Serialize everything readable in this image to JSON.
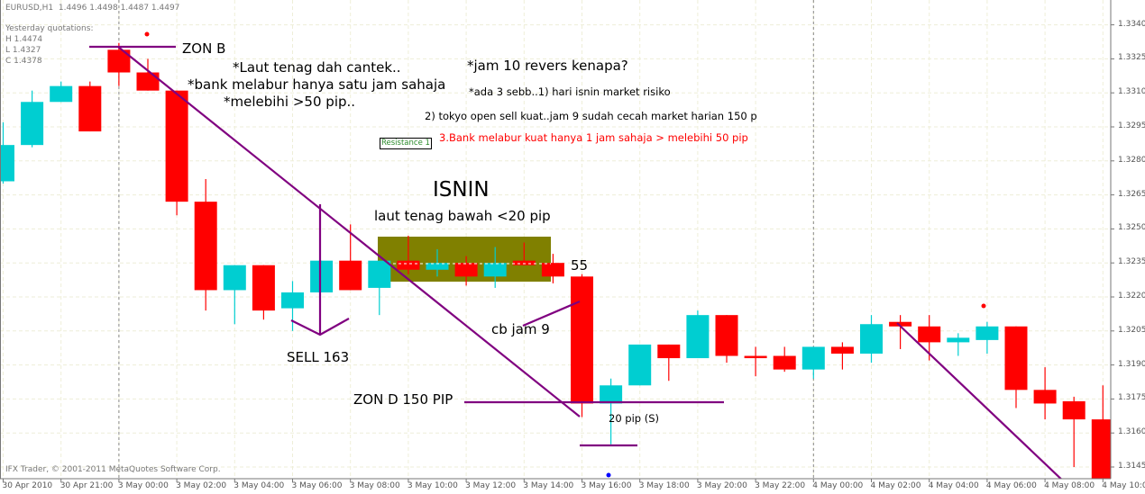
{
  "header": {
    "symbol": "EURUSD,H1",
    "quote": "1.4496 1.4498 1.4487 1.4497",
    "yesterday_title": "Yesterday quotations:",
    "yesterday_high": "H 1.4474",
    "yesterday_low": "L 1.4327",
    "yesterday_close": "C 1.4378"
  },
  "footer": {
    "copyright": "IFX Trader, © 2001-2011 MetaQuotes Software Corp."
  },
  "annotations": {
    "zon_b": "ZON B",
    "note1": "*Laut tenag dah cantek..",
    "note2": "*bank melabur hanya satu jam sahaja",
    "note3": "*melebihi >50 pip..",
    "q_title": "*jam 10 revers kenapa?",
    "q1": "*ada 3 sebb..1) hari isnin market risiko",
    "q2": "2) tokyo open sell kuat..jam 9 sudah cecah market harian 150 p",
    "q3": "3.Bank melabur kuat hanya 1 jam sahaja > melebihi 50 pip",
    "resistance": "Resistance 1",
    "isnin": "ISNIN",
    "isnin_sub": "laut tenag bawah <20 pip",
    "n55": "55",
    "cb": "cb jam 9",
    "sell": "SELL 163",
    "zon_d": "ZON D 150 PIP",
    "pip20": "20 pip (S)"
  },
  "colors": {
    "bull": "#00CED1",
    "bear": "#FF0000",
    "drawing": "#800080",
    "box": "#808000",
    "grid": "#EEEED8",
    "note_red": "#FF0000"
  },
  "chart_data": {
    "type": "candlestick",
    "symbol": "EURUSD",
    "timeframe": "H1",
    "ylim": [
      1.314,
      1.3345
    ],
    "yticks": [
      "1.3340",
      "1.3325",
      "1.3310",
      "1.3295",
      "1.3280",
      "1.3265",
      "1.3250",
      "1.3235",
      "1.3220",
      "1.3205",
      "1.3190",
      "1.3175",
      "1.3160",
      "1.3145"
    ],
    "xticks": [
      {
        "i": 0,
        "label": "30 Apr 2010"
      },
      {
        "i": 2,
        "label": "30 Apr 21:00"
      },
      {
        "i": 4,
        "label": "3 May 00:00"
      },
      {
        "i": 6,
        "label": "3 May 02:00"
      },
      {
        "i": 8,
        "label": "3 May 04:00"
      },
      {
        "i": 10,
        "label": "3 May 06:00"
      },
      {
        "i": 12,
        "label": "3 May 08:00"
      },
      {
        "i": 14,
        "label": "3 May 10:00"
      },
      {
        "i": 16,
        "label": "3 May 12:00"
      },
      {
        "i": 18,
        "label": "3 May 14:00"
      },
      {
        "i": 20,
        "label": "3 May 16:00"
      },
      {
        "i": 22,
        "label": "3 May 18:00"
      },
      {
        "i": 24,
        "label": "3 May 20:00"
      },
      {
        "i": 26,
        "label": "3 May 22:00"
      },
      {
        "i": 28,
        "label": "4 May 00:00"
      },
      {
        "i": 30,
        "label": "4 May 02:00"
      },
      {
        "i": 32,
        "label": "4 May 04:00"
      },
      {
        "i": 34,
        "label": "4 May 06:00"
      },
      {
        "i": 36,
        "label": "4 May 08:00"
      },
      {
        "i": 38,
        "label": "4 May 10:00"
      }
    ],
    "day_separators": [
      4,
      28
    ],
    "ohlc": [
      [
        1.3271,
        1.3297,
        1.327,
        1.3287
      ],
      [
        1.3287,
        1.3311,
        1.3286,
        1.3306
      ],
      [
        1.3306,
        1.3315,
        1.3306,
        1.3313
      ],
      [
        1.3313,
        1.3315,
        1.3293,
        1.3293
      ],
      [
        1.3329,
        1.3332,
        1.3313,
        1.3319
      ],
      [
        1.3319,
        1.3325,
        1.3311,
        1.3311
      ],
      [
        1.3311,
        1.3311,
        1.3256,
        1.3262
      ],
      [
        1.3262,
        1.3272,
        1.3214,
        1.3223
      ],
      [
        1.3223,
        1.3234,
        1.3208,
        1.3234
      ],
      [
        1.3234,
        1.3234,
        1.321,
        1.3214
      ],
      [
        1.3215,
        1.3227,
        1.3205,
        1.3222
      ],
      [
        1.3222,
        1.3236,
        1.3222,
        1.3236
      ],
      [
        1.3236,
        1.3252,
        1.3223,
        1.3223
      ],
      [
        1.3224,
        1.3236,
        1.3212,
        1.3236
      ],
      [
        1.3236,
        1.3247,
        1.323,
        1.3232
      ],
      [
        1.3232,
        1.3241,
        1.3229,
        1.3235
      ],
      [
        1.3235,
        1.3238,
        1.3225,
        1.3229
      ],
      [
        1.3229,
        1.3242,
        1.3224,
        1.3235
      ],
      [
        1.3236,
        1.3244,
        1.3234,
        1.3234
      ],
      [
        1.3235,
        1.3239,
        1.3226,
        1.3229
      ],
      [
        1.3229,
        1.323,
        1.3167,
        1.3173
      ],
      [
        1.3173,
        1.3184,
        1.3155,
        1.3181
      ],
      [
        1.3181,
        1.3199,
        1.3181,
        1.3199
      ],
      [
        1.3199,
        1.3199,
        1.3183,
        1.3193
      ],
      [
        1.3193,
        1.3214,
        1.3193,
        1.3212
      ],
      [
        1.3212,
        1.3212,
        1.3191,
        1.3194
      ],
      [
        1.3194,
        1.3198,
        1.3185,
        1.3193
      ],
      [
        1.3194,
        1.3198,
        1.3187,
        1.3188
      ],
      [
        1.3188,
        1.3198,
        1.3184,
        1.3198
      ],
      [
        1.3198,
        1.32,
        1.3188,
        1.3195
      ],
      [
        1.3195,
        1.3212,
        1.3191,
        1.3208
      ],
      [
        1.3209,
        1.3212,
        1.3197,
        1.3207
      ],
      [
        1.3207,
        1.3212,
        1.3192,
        1.32
      ],
      [
        1.32,
        1.3204,
        1.3194,
        1.3202
      ],
      [
        1.3201,
        1.3209,
        1.3195,
        1.3207
      ],
      [
        1.3207,
        1.3207,
        1.3171,
        1.3179
      ],
      [
        1.3179,
        1.3189,
        1.3166,
        1.3173
      ],
      [
        1.3174,
        1.3176,
        1.3145,
        1.3166
      ],
      [
        1.3166,
        1.3181,
        1.314,
        1.314
      ]
    ],
    "grid": true
  }
}
